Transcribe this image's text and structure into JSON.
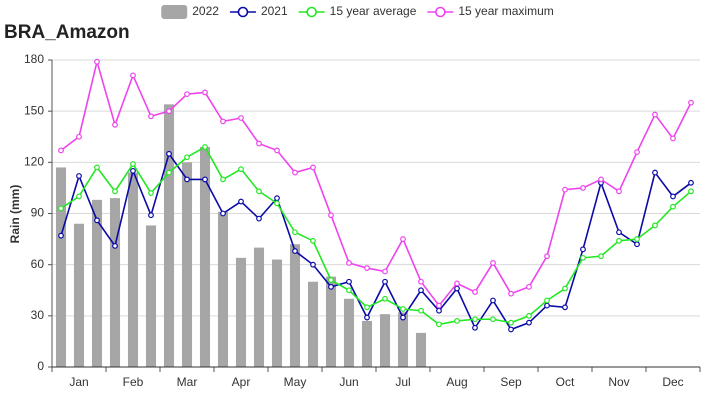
{
  "chart_data": {
    "type": "bar_line",
    "title": "BRA_Amazon",
    "y_label": "Rain (mm)",
    "categories": [
      null,
      "Jan",
      null,
      null,
      "Feb",
      null,
      null,
      "Mar",
      null,
      null,
      "Apr",
      null,
      null,
      "May",
      null,
      null,
      "Jun",
      null,
      null,
      "Jul",
      null,
      null,
      "Aug",
      null,
      null,
      "Sep",
      null,
      null,
      "Oct",
      null,
      null,
      "Nov",
      null,
      null,
      "Dec",
      null
    ],
    "ylim": [
      0,
      180
    ],
    "yticks": [
      0,
      30,
      60,
      90,
      120,
      150,
      180
    ],
    "grid": true,
    "legend": "top",
    "series": [
      {
        "name": "2022",
        "kind": "bar",
        "color": "#a6a6a6",
        "values": [
          117,
          84,
          98,
          99,
          114,
          83,
          154,
          120,
          129,
          91,
          64,
          70,
          63,
          72,
          50,
          53,
          40,
          27,
          31,
          32,
          20,
          null,
          null,
          null,
          null,
          null,
          null,
          null,
          null,
          null,
          null,
          null,
          null,
          null,
          null,
          null
        ]
      },
      {
        "name": "2021",
        "kind": "line",
        "color": "#0a0aa8",
        "values": [
          77,
          112,
          86,
          71,
          115,
          89,
          125,
          110,
          110,
          90,
          97,
          87,
          99,
          68,
          60,
          47,
          50,
          29,
          50,
          29,
          45,
          33,
          46,
          23,
          39,
          22,
          26,
          36,
          35,
          69,
          108,
          79,
          72,
          114,
          100,
          108
        ]
      },
      {
        "name": "15 year average",
        "kind": "line",
        "color": "#22e822",
        "values": [
          93,
          100,
          117,
          103,
          119,
          102,
          114,
          123,
          129,
          110,
          116,
          103,
          96,
          79,
          74,
          51,
          45,
          35,
          40,
          34,
          33,
          25,
          27,
          28,
          28,
          26,
          30,
          39,
          46,
          64,
          65,
          74,
          75,
          83,
          94,
          103
        ]
      },
      {
        "name": "15 year maximum",
        "kind": "line",
        "color": "#ee44ee",
        "values": [
          127,
          135,
          179,
          142,
          171,
          147,
          150,
          160,
          161,
          144,
          146,
          131,
          127,
          114,
          117,
          89,
          61,
          58,
          56,
          75,
          50,
          36,
          49,
          44,
          61,
          43,
          47,
          65,
          104,
          105,
          110,
          103,
          126,
          148,
          134,
          155
        ]
      }
    ]
  }
}
